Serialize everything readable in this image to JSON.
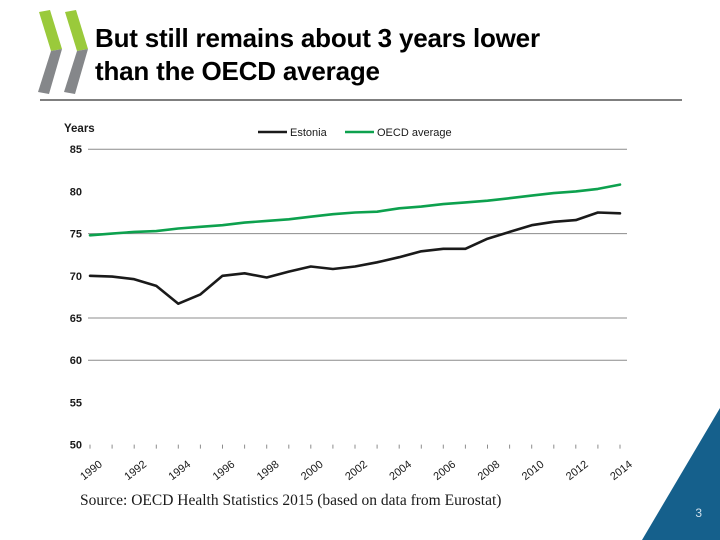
{
  "slide": {
    "title_line1": "But still remains about 3 years lower",
    "title_line2": "than the OECD average",
    "source": "Source: OECD Health Statistics 2015 (based on data from Eurostat)",
    "page_number": "3"
  },
  "logo": {
    "description": "oecd-double-chevron-logo",
    "green": "#9ACA3B",
    "gray": "#85878A"
  },
  "colors": {
    "accent_blue": "#15608C",
    "divider_gray": "#7F7F7F"
  },
  "chart_data": {
    "type": "line",
    "title": "",
    "xlabel": "",
    "ylabel": "Years",
    "ylim": [
      50,
      85
    ],
    "yticks": [
      50,
      55,
      60,
      65,
      70,
      75,
      80,
      85
    ],
    "gridline_values": [
      60,
      65,
      75,
      85
    ],
    "grid_color": "#8C8C8C",
    "legend_position": "top-center",
    "x": [
      1990,
      1991,
      1992,
      1993,
      1994,
      1995,
      1996,
      1997,
      1998,
      1999,
      2000,
      2001,
      2002,
      2003,
      2004,
      2005,
      2006,
      2007,
      2008,
      2009,
      2010,
      2011,
      2012,
      2013,
      2014
    ],
    "x_tick_labels": [
      "1990",
      "1992",
      "1994",
      "1996",
      "1998",
      "2000",
      "2002",
      "2004",
      "2006",
      "2008",
      "2010",
      "2012",
      "2014"
    ],
    "series": [
      {
        "name": "Estonia",
        "color": "#1A1A1A",
        "values": [
          70.0,
          69.9,
          69.6,
          68.8,
          66.7,
          67.8,
          70.0,
          70.3,
          69.8,
          70.5,
          71.1,
          70.8,
          71.1,
          71.6,
          72.2,
          72.9,
          73.2,
          73.2,
          74.4,
          75.2,
          76.0,
          76.4,
          76.6,
          77.5,
          77.4
        ]
      },
      {
        "name": "OECD average",
        "color": "#0DA14E",
        "values": [
          74.8,
          75.0,
          75.2,
          75.3,
          75.6,
          75.8,
          76.0,
          76.3,
          76.5,
          76.7,
          77.0,
          77.3,
          77.5,
          77.6,
          78.0,
          78.2,
          78.5,
          78.7,
          78.9,
          79.2,
          79.5,
          79.8,
          80.0,
          80.3,
          80.8
        ]
      }
    ]
  }
}
